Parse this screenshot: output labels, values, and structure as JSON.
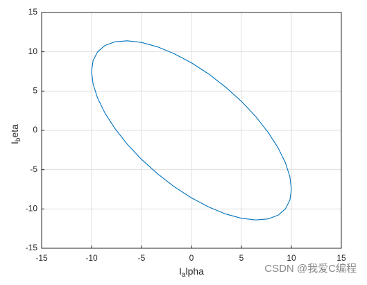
{
  "chart_data": {
    "type": "line",
    "xlabel": [
      "I",
      "a",
      "lpha"
    ],
    "ylabel": [
      "I",
      "b",
      "eta"
    ],
    "watermark": "CSDN @我爱C编程",
    "x": [
      10,
      9.85,
      9.4,
      8.66,
      7.66,
      6.43,
      5.0,
      3.42,
      1.74,
      0,
      -1.74,
      -3.42,
      -5.0,
      -6.43,
      -7.66,
      -8.66,
      -9.4,
      -9.85,
      -10,
      -9.85,
      -9.4,
      -8.66,
      -7.66,
      -6.43,
      -5.0,
      -3.42,
      -1.74,
      0,
      1.74,
      3.42,
      5.0,
      6.43,
      7.66,
      8.66,
      9.4,
      9.85,
      10
    ],
    "series": [
      {
        "color": "#0072bd",
        "values": [
          -7.5,
          -5.9,
          -4.11,
          -2.2,
          -0.23,
          1.76,
          3.69,
          5.5,
          7.16,
          8.59,
          9.76,
          10.64,
          11.19,
          11.4,
          11.27,
          10.8,
          9.99,
          8.88,
          7.5,
          5.9,
          4.11,
          2.2,
          0.23,
          -1.76,
          -3.69,
          -5.5,
          -7.16,
          -8.59,
          -9.76,
          -10.64,
          -11.19,
          -11.4,
          -11.27,
          -10.8,
          -9.99,
          -8.88,
          -7.5
        ]
      }
    ],
    "xlim": [
      -15,
      15
    ],
    "ylim": [
      -15,
      15
    ],
    "xticks": [
      -15,
      -10,
      -5,
      0,
      5,
      10,
      15
    ],
    "yticks": [
      -15,
      -10,
      -5,
      0,
      5,
      10,
      15
    ],
    "grid": true
  }
}
